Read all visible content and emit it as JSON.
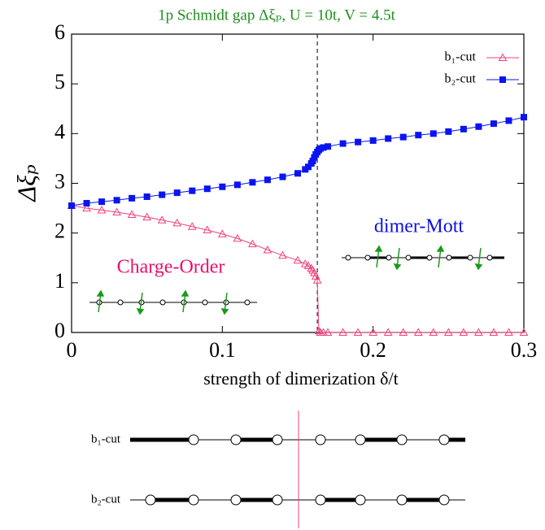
{
  "chart_data": {
    "type": "line",
    "title": "1p Schmidt gap Δξₚ, U = 10t, V = 4.5t",
    "xlabel": "strength of dimerization δ/t",
    "ylabel": "Δξₚ",
    "x": [
      0,
      0.01,
      0.02,
      0.03,
      0.04,
      0.05,
      0.06,
      0.07,
      0.08,
      0.09,
      0.1,
      0.11,
      0.12,
      0.13,
      0.14,
      0.15,
      0.155,
      0.157,
      0.159,
      0.16,
      0.161,
      0.162,
      0.163,
      0.164,
      0.165,
      0.167,
      0.17,
      0.18,
      0.19,
      0.2,
      0.21,
      0.22,
      0.23,
      0.24,
      0.25,
      0.26,
      0.27,
      0.28,
      0.29,
      0.3
    ],
    "series": [
      {
        "name": "b₁-cut",
        "color": "#f0407a",
        "marker": "triangle",
        "values": [
          2.55,
          2.5,
          2.46,
          2.42,
          2.37,
          2.32,
          2.26,
          2.2,
          2.13,
          2.06,
          1.98,
          1.89,
          1.78,
          1.66,
          1.55,
          1.45,
          1.38,
          1.34,
          1.29,
          1.25,
          1.2,
          1.13,
          1.05,
          0.03,
          0,
          0,
          0,
          0,
          0,
          0,
          0,
          0,
          0,
          0,
          0,
          0,
          0,
          0,
          0,
          0
        ]
      },
      {
        "name": "b₂-cut",
        "color": "#0a14f0",
        "marker": "square",
        "values": [
          2.55,
          2.6,
          2.63,
          2.66,
          2.7,
          2.73,
          2.77,
          2.81,
          2.85,
          2.89,
          2.93,
          2.97,
          3.02,
          3.07,
          3.13,
          3.2,
          3.28,
          3.33,
          3.4,
          3.45,
          3.52,
          3.58,
          3.63,
          3.67,
          3.7,
          3.72,
          3.74,
          3.8,
          3.83,
          3.86,
          3.9,
          3.93,
          3.97,
          4.0,
          4.04,
          4.09,
          4.14,
          4.2,
          4.26,
          4.33
        ]
      }
    ],
    "xlim": [
      0,
      0.3
    ],
    "xticks": [
      0,
      0.1,
      0.2,
      0.3
    ],
    "ylim": [
      0,
      6
    ],
    "yticks": [
      0,
      1,
      2,
      3,
      4,
      5,
      6
    ],
    "vline": 0.163,
    "annotations": [
      "Charge-Order",
      "dimer-Mott"
    ],
    "legend": "upper-right"
  },
  "diagram": {
    "rows": [
      {
        "label": "b₁-cut"
      },
      {
        "label": "b₂-cut"
      }
    ]
  }
}
